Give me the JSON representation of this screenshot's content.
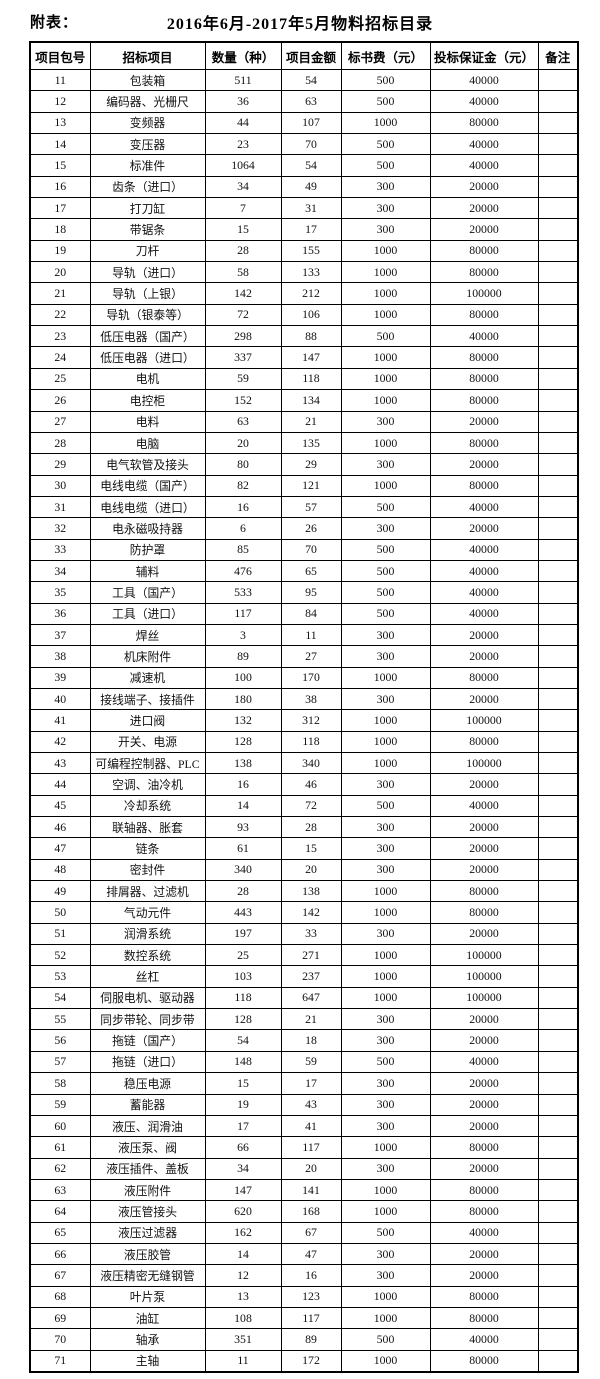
{
  "page": {
    "label": "附表：",
    "title": "2016年6月-2017年5月物料招标目录"
  },
  "table": {
    "headers": [
      "项目包号",
      "招标项目",
      "数量（种）",
      "项目金额",
      "标书费（元）",
      "投标保证金（元）",
      "备注"
    ],
    "rows": [
      [
        "11",
        "包装箱",
        "511",
        "54",
        "500",
        "40000",
        ""
      ],
      [
        "12",
        "编码器、光栅尺",
        "36",
        "63",
        "500",
        "40000",
        ""
      ],
      [
        "13",
        "变频器",
        "44",
        "107",
        "1000",
        "80000",
        ""
      ],
      [
        "14",
        "变压器",
        "23",
        "70",
        "500",
        "40000",
        ""
      ],
      [
        "15",
        "标准件",
        "1064",
        "54",
        "500",
        "40000",
        ""
      ],
      [
        "16",
        "齿条（进口）",
        "34",
        "49",
        "300",
        "20000",
        ""
      ],
      [
        "17",
        "打刀缸",
        "7",
        "31",
        "300",
        "20000",
        ""
      ],
      [
        "18",
        "带锯条",
        "15",
        "17",
        "300",
        "20000",
        ""
      ],
      [
        "19",
        "刀杆",
        "28",
        "155",
        "1000",
        "80000",
        ""
      ],
      [
        "20",
        "导轨（进口）",
        "58",
        "133",
        "1000",
        "80000",
        ""
      ],
      [
        "21",
        "导轨（上银）",
        "142",
        "212",
        "1000",
        "100000",
        ""
      ],
      [
        "22",
        "导轨（银泰等）",
        "72",
        "106",
        "1000",
        "80000",
        ""
      ],
      [
        "23",
        "低压电器（国产）",
        "298",
        "88",
        "500",
        "40000",
        ""
      ],
      [
        "24",
        "低压电器（进口）",
        "337",
        "147",
        "1000",
        "80000",
        ""
      ],
      [
        "25",
        "电机",
        "59",
        "118",
        "1000",
        "80000",
        ""
      ],
      [
        "26",
        "电控柜",
        "152",
        "134",
        "1000",
        "80000",
        ""
      ],
      [
        "27",
        "电料",
        "63",
        "21",
        "300",
        "20000",
        ""
      ],
      [
        "28",
        "电脑",
        "20",
        "135",
        "1000",
        "80000",
        ""
      ],
      [
        "29",
        "电气软管及接头",
        "80",
        "29",
        "300",
        "20000",
        ""
      ],
      [
        "30",
        "电线电缆（国产）",
        "82",
        "121",
        "1000",
        "80000",
        ""
      ],
      [
        "31",
        "电线电缆（进口）",
        "16",
        "57",
        "500",
        "40000",
        ""
      ],
      [
        "32",
        "电永磁吸持器",
        "6",
        "26",
        "300",
        "20000",
        ""
      ],
      [
        "33",
        "防护罩",
        "85",
        "70",
        "500",
        "40000",
        ""
      ],
      [
        "34",
        "辅料",
        "476",
        "65",
        "500",
        "40000",
        ""
      ],
      [
        "35",
        "工具（国产）",
        "533",
        "95",
        "500",
        "40000",
        ""
      ],
      [
        "36",
        "工具（进口）",
        "117",
        "84",
        "500",
        "40000",
        ""
      ],
      [
        "37",
        "焊丝",
        "3",
        "11",
        "300",
        "20000",
        ""
      ],
      [
        "38",
        "机床附件",
        "89",
        "27",
        "300",
        "20000",
        ""
      ],
      [
        "39",
        "减速机",
        "100",
        "170",
        "1000",
        "80000",
        ""
      ],
      [
        "40",
        "接线端子、接插件",
        "180",
        "38",
        "300",
        "20000",
        ""
      ],
      [
        "41",
        "进口阀",
        "132",
        "312",
        "1000",
        "100000",
        ""
      ],
      [
        "42",
        "开关、电源",
        "128",
        "118",
        "1000",
        "80000",
        ""
      ],
      [
        "43",
        "可编程控制器、PLC",
        "138",
        "340",
        "1000",
        "100000",
        ""
      ],
      [
        "44",
        "空调、油冷机",
        "16",
        "46",
        "300",
        "20000",
        ""
      ],
      [
        "45",
        "冷却系统",
        "14",
        "72",
        "500",
        "40000",
        ""
      ],
      [
        "46",
        "联轴器、胀套",
        "93",
        "28",
        "300",
        "20000",
        ""
      ],
      [
        "47",
        "链条",
        "61",
        "15",
        "300",
        "20000",
        ""
      ],
      [
        "48",
        "密封件",
        "340",
        "20",
        "300",
        "20000",
        ""
      ],
      [
        "49",
        "排屑器、过滤机",
        "28",
        "138",
        "1000",
        "80000",
        ""
      ],
      [
        "50",
        "气动元件",
        "443",
        "142",
        "1000",
        "80000",
        ""
      ],
      [
        "51",
        "润滑系统",
        "197",
        "33",
        "300",
        "20000",
        ""
      ],
      [
        "52",
        "数控系统",
        "25",
        "271",
        "1000",
        "100000",
        ""
      ],
      [
        "53",
        "丝杠",
        "103",
        "237",
        "1000",
        "100000",
        ""
      ],
      [
        "54",
        "伺服电机、驱动器",
        "118",
        "647",
        "1000",
        "100000",
        ""
      ],
      [
        "55",
        "同步带轮、同步带",
        "128",
        "21",
        "300",
        "20000",
        ""
      ],
      [
        "56",
        "拖链（国产）",
        "54",
        "18",
        "300",
        "20000",
        ""
      ],
      [
        "57",
        "拖链（进口）",
        "148",
        "59",
        "500",
        "40000",
        ""
      ],
      [
        "58",
        "稳压电源",
        "15",
        "17",
        "300",
        "20000",
        ""
      ],
      [
        "59",
        "蓄能器",
        "19",
        "43",
        "300",
        "20000",
        ""
      ],
      [
        "60",
        "液压、润滑油",
        "17",
        "41",
        "300",
        "20000",
        ""
      ],
      [
        "61",
        "液压泵、阀",
        "66",
        "117",
        "1000",
        "80000",
        ""
      ],
      [
        "62",
        "液压插件、盖板",
        "34",
        "20",
        "300",
        "20000",
        ""
      ],
      [
        "63",
        "液压附件",
        "147",
        "141",
        "1000",
        "80000",
        ""
      ],
      [
        "64",
        "液压管接头",
        "620",
        "168",
        "1000",
        "80000",
        ""
      ],
      [
        "65",
        "液压过滤器",
        "162",
        "67",
        "500",
        "40000",
        ""
      ],
      [
        "66",
        "液压胶管",
        "14",
        "47",
        "300",
        "20000",
        ""
      ],
      [
        "67",
        "液压精密无缝钢管",
        "12",
        "16",
        "300",
        "20000",
        ""
      ],
      [
        "68",
        "叶片泵",
        "13",
        "123",
        "1000",
        "80000",
        ""
      ],
      [
        "69",
        "油缸",
        "108",
        "117",
        "1000",
        "80000",
        ""
      ],
      [
        "70",
        "轴承",
        "351",
        "89",
        "500",
        "40000",
        ""
      ],
      [
        "71",
        "主轴",
        "11",
        "172",
        "1000",
        "80000",
        ""
      ]
    ]
  }
}
